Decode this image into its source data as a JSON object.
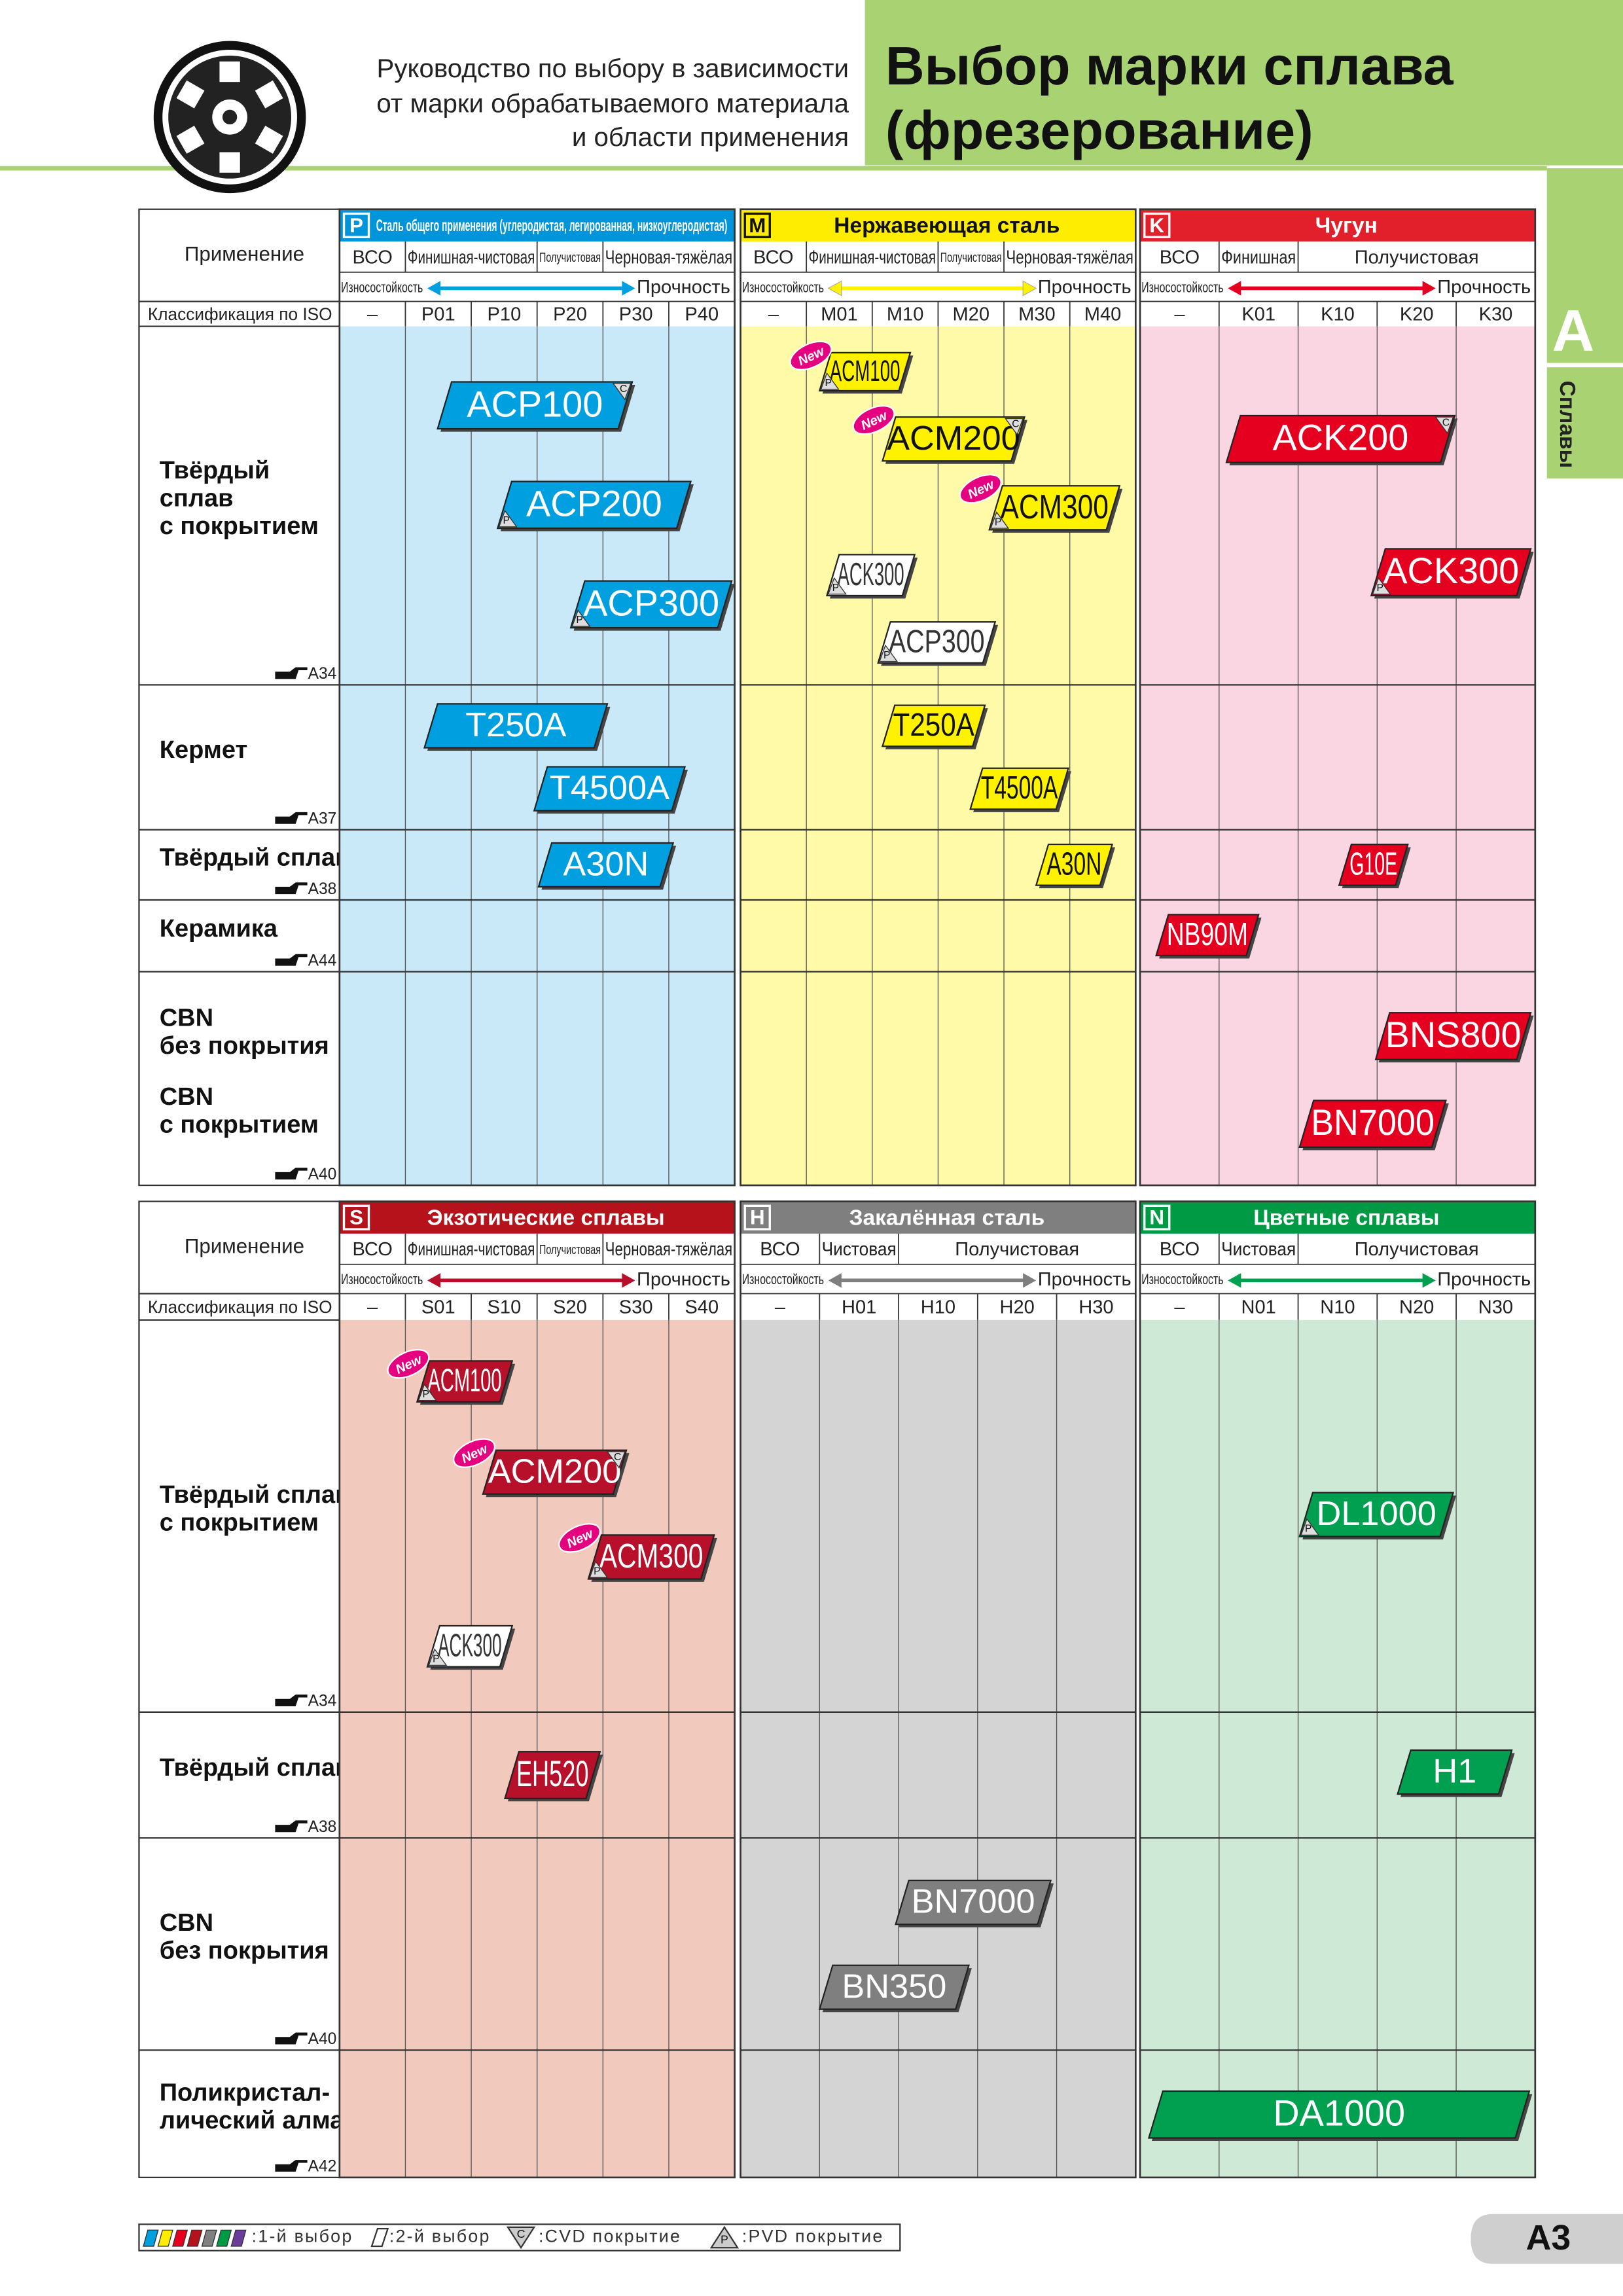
{
  "header": {
    "subtitle": [
      "Руководство по выбору в зависимости",
      "от марки обрабатываемого материала",
      "и области применения"
    ],
    "title": [
      "Выбор марки сплава",
      "(фрезерование)"
    ]
  },
  "side_tab": {
    "letter": "A",
    "label": "Сплавы"
  },
  "sections": [
    {
      "row_header": {
        "application": "Применение",
        "iso": "Классификация по ISO"
      },
      "rows": [
        {
          "label": [
            "Твёрдый",
            "сплав",
            "с покрытием"
          ],
          "ref": "A34"
        },
        {
          "label": [
            "Кермет"
          ],
          "ref": "A37"
        },
        {
          "label": [
            "Твёрдый сплав"
          ],
          "ref": "A38"
        },
        {
          "label": [
            "Керамика"
          ],
          "ref": "A44"
        },
        {
          "label": [
            "CBN",
            "без покрытия",
            "CBN",
            "с покрытием"
          ],
          "ref": "A40"
        }
      ],
      "groups": [
        {
          "letter": "P",
          "name": "Сталь общего применения (углеродистая, легированная, низкоуглеродистая)",
          "applications": [
            "ВСО",
            "Финишная-чистовая",
            "Получистовая",
            "Черновая-тяжёлая"
          ],
          "wear": "Износостойкость",
          "toughness": "Прочность",
          "iso": [
            "–",
            "P01",
            "P10",
            "P20",
            "P30",
            "P40"
          ],
          "grades": [
            {
              "name": "ACP100",
              "row": 0,
              "coating": "C"
            },
            {
              "name": "ACP200",
              "row": 0,
              "coating": "P"
            },
            {
              "name": "ACP300",
              "row": 0,
              "coating": "P"
            },
            {
              "name": "T250A",
              "row": 1
            },
            {
              "name": "T4500A",
              "row": 1
            },
            {
              "name": "A30N",
              "row": 2
            }
          ]
        },
        {
          "letter": "M",
          "name": "Нержавеющая сталь",
          "applications": [
            "ВСО",
            "Финишная-чистовая",
            "Получистовая",
            "Черновая-тяжёлая"
          ],
          "wear": "Износостойкость",
          "toughness": "Прочность",
          "iso": [
            "–",
            "M01",
            "M10",
            "M20",
            "M30",
            "M40"
          ],
          "grades": [
            {
              "name": "ACM100",
              "row": 0,
              "coating": "P",
              "new": "New"
            },
            {
              "name": "ACM200",
              "row": 0,
              "coating": "C",
              "new": "New"
            },
            {
              "name": "ACM300",
              "row": 0,
              "coating": "P",
              "new": "New"
            },
            {
              "name": "ACK300",
              "row": 0,
              "coating": "P",
              "second": true
            },
            {
              "name": "ACP300",
              "row": 0,
              "coating": "P",
              "second": true
            },
            {
              "name": "T250A",
              "row": 1
            },
            {
              "name": "T4500A",
              "row": 1
            },
            {
              "name": "A30N",
              "row": 2
            }
          ]
        },
        {
          "letter": "K",
          "name": "Чугун",
          "applications": [
            "ВСО",
            "Финишная",
            "Получистовая"
          ],
          "wear": "Износостойкость",
          "toughness": "Прочность",
          "iso": [
            "–",
            "K01",
            "K10",
            "K20",
            "K30"
          ],
          "grades": [
            {
              "name": "ACK200",
              "row": 0,
              "coating": "C"
            },
            {
              "name": "ACK300",
              "row": 0,
              "coating": "P"
            },
            {
              "name": "G10E",
              "row": 2
            },
            {
              "name": "NB90M",
              "row": 3
            },
            {
              "name": "BNS800",
              "row": 4
            },
            {
              "name": "BN7000",
              "row": 4
            }
          ]
        }
      ]
    },
    {
      "row_header": {
        "application": "Применение",
        "iso": "Классификация по ISO"
      },
      "rows": [
        {
          "label": [
            "Твёрдый сплав",
            "с покрытием"
          ],
          "ref": "A34"
        },
        {
          "label": [
            "Твёрдый сплав"
          ],
          "ref": "A38"
        },
        {
          "label": [
            "CBN",
            "без покрытия"
          ],
          "ref": "A40"
        },
        {
          "label": [
            "Поликристал-",
            "лический алмаз"
          ],
          "ref": "A42"
        }
      ],
      "groups": [
        {
          "letter": "S",
          "name": "Экзотические сплавы",
          "applications": [
            "ВСО",
            "Финишная-чистовая",
            "Получистовая",
            "Черновая-тяжёлая"
          ],
          "wear": "Износостойкость",
          "toughness": "Прочность",
          "iso": [
            "–",
            "S01",
            "S10",
            "S20",
            "S30",
            "S40"
          ],
          "grades": [
            {
              "name": "ACM100",
              "row": 0,
              "coating": "P",
              "new": "New"
            },
            {
              "name": "ACM200",
              "row": 0,
              "coating": "C",
              "new": "New"
            },
            {
              "name": "ACM300",
              "row": 0,
              "coating": "P",
              "new": "New"
            },
            {
              "name": "ACK300",
              "row": 0,
              "coating": "P",
              "second": true
            },
            {
              "name": "EH520",
              "row": 1
            }
          ]
        },
        {
          "letter": "H",
          "name": "Закалённая сталь",
          "applications": [
            "ВСО",
            "Чистовая",
            "Получистовая"
          ],
          "wear": "Износостойкость",
          "toughness": "Прочность",
          "iso": [
            "–",
            "H01",
            "H10",
            "H20",
            "H30"
          ],
          "grades": [
            {
              "name": "BN7000",
              "row": 2
            },
            {
              "name": "BN350",
              "row": 2
            }
          ]
        },
        {
          "letter": "N",
          "name": "Цветные сплавы",
          "applications": [
            "ВСО",
            "Чистовая",
            "Получистовая"
          ],
          "wear": "Износостойкость",
          "toughness": "Прочность",
          "iso": [
            "–",
            "N01",
            "N10",
            "N20",
            "N30"
          ],
          "grades": [
            {
              "name": "DL1000",
              "row": 0,
              "coating": "P"
            },
            {
              "name": "H1",
              "row": 1
            },
            {
              "name": "DA1000",
              "row": 3
            }
          ]
        }
      ]
    }
  ],
  "legend": {
    "first": ":1-й выбор",
    "second": ":2-й выбор",
    "cvd_mark": "C",
    "cvd": ":CVD покрытие",
    "pvd_mark": "P",
    "pvd": ":PVD покрытие"
  },
  "page_number": "A3"
}
